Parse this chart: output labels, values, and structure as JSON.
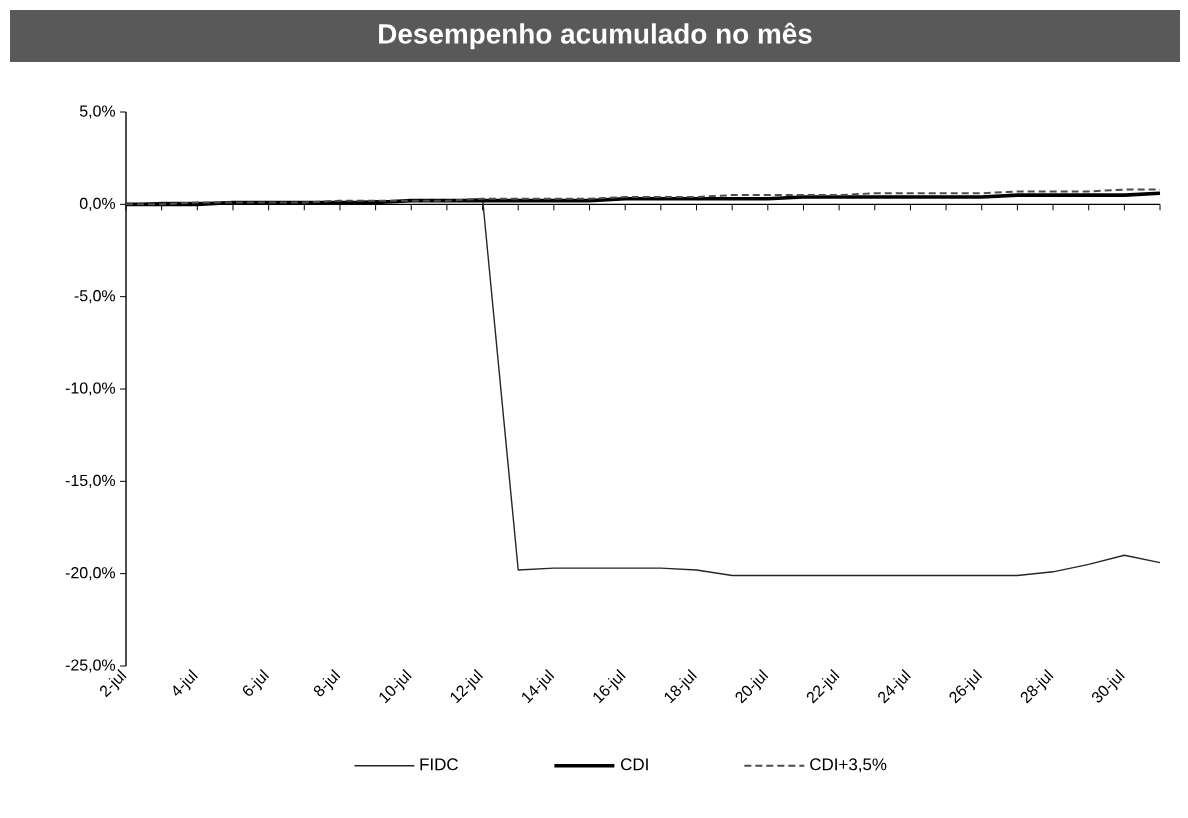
{
  "chart_data": {
    "type": "line",
    "title": "Desempenho acumulado no mês",
    "categories": [
      "2-jul",
      null,
      "4-jul",
      null,
      "6-jul",
      null,
      "8-jul",
      null,
      "10-jul",
      null,
      "12-jul",
      null,
      "14-jul",
      null,
      "16-jul",
      null,
      "18-jul",
      null,
      "20-jul",
      null,
      "22-jul",
      null,
      "24-jul",
      null,
      "26-jul",
      null,
      "28-jul",
      null,
      "30-jul",
      null
    ],
    "series": [
      {
        "name": "FIDC",
        "color": "#262626",
        "values": [
          0.0,
          0.1,
          0.1,
          0.1,
          0.1,
          0.1,
          0.1,
          0.2,
          0.2,
          0.2,
          0.3,
          -19.8,
          -19.7,
          -19.7,
          -19.7,
          -19.7,
          -19.8,
          -20.1,
          -20.1,
          -20.1,
          -20.1,
          -20.1,
          -20.1,
          -20.1,
          -20.1,
          -20.1,
          -19.9,
          -19.5,
          -19.0,
          -19.4
        ]
      },
      {
        "name": "CDI",
        "color": "#000000",
        "values": [
          0.0,
          0.0,
          0.0,
          0.1,
          0.1,
          0.1,
          0.1,
          0.1,
          0.2,
          0.2,
          0.2,
          0.2,
          0.2,
          0.2,
          0.3,
          0.3,
          0.3,
          0.3,
          0.3,
          0.4,
          0.4,
          0.4,
          0.4,
          0.4,
          0.4,
          0.5,
          0.5,
          0.5,
          0.5,
          0.6
        ]
      },
      {
        "name": "CDI+3,5%",
        "color": "#4d4d4d",
        "line_style": "dashed",
        "values": [
          0.0,
          0.0,
          0.1,
          0.1,
          0.1,
          0.1,
          0.2,
          0.2,
          0.2,
          0.2,
          0.3,
          0.3,
          0.3,
          0.3,
          0.4,
          0.4,
          0.4,
          0.5,
          0.5,
          0.5,
          0.5,
          0.6,
          0.6,
          0.6,
          0.6,
          0.7,
          0.7,
          0.7,
          0.8,
          0.8
        ]
      }
    ],
    "ylim": [
      -25,
      5
    ],
    "yticks": [
      {
        "value": 5,
        "label": "5,0%"
      },
      {
        "value": 0,
        "label": "0,0%"
      },
      {
        "value": -5,
        "label": "-5,0%"
      },
      {
        "value": -10,
        "label": "-10,0%"
      },
      {
        "value": -15,
        "label": "-15,0%"
      },
      {
        "value": -20,
        "label": "-20,0%"
      },
      {
        "value": -25,
        "label": "-25,0%"
      }
    ],
    "legend": "bottom"
  }
}
